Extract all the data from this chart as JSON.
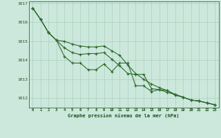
{
  "xlabel": "Graphe pression niveau de la mer (hPa)",
  "hours": [
    0,
    1,
    2,
    3,
    4,
    5,
    6,
    7,
    8,
    9,
    10,
    11,
    12,
    13,
    14,
    15,
    16,
    17,
    18,
    19,
    20,
    21,
    22,
    23
  ],
  "line1": [
    1016.75,
    1016.15,
    1015.45,
    1015.05,
    1014.2,
    1013.85,
    1013.85,
    1013.5,
    1013.5,
    1013.8,
    1013.4,
    1013.85,
    1013.85,
    1012.65,
    1012.65,
    1012.35,
    1012.45,
    1012.4,
    1012.15,
    1012.05,
    1011.9,
    1011.85,
    1011.75,
    1011.65
  ],
  "line2": [
    1016.75,
    1016.15,
    1015.45,
    1015.05,
    1014.65,
    1014.4,
    1014.3,
    1014.35,
    1014.35,
    1014.4,
    1014.05,
    1013.7,
    1013.3,
    1013.25,
    1013.25,
    1012.5,
    1012.45,
    1012.3,
    1012.2,
    1012.05,
    1011.9,
    1011.85,
    1011.75,
    1011.65
  ],
  "line3": [
    1016.75,
    1016.15,
    1015.45,
    1015.05,
    1015.0,
    1014.85,
    1014.75,
    1014.7,
    1014.7,
    1014.75,
    1014.5,
    1014.25,
    1013.75,
    1013.3,
    1013.0,
    1012.75,
    1012.55,
    1012.4,
    1012.2,
    1012.05,
    1011.9,
    1011.85,
    1011.75,
    1011.65
  ],
  "line_color": "#2d6a2d",
  "bg_color": "#cce8dc",
  "grid_color": "#aacfbe",
  "text_color": "#1a4f1a",
  "ylim": [
    1011.5,
    1017.1
  ],
  "yticks": [
    1012,
    1013,
    1014,
    1015,
    1016,
    1017
  ]
}
